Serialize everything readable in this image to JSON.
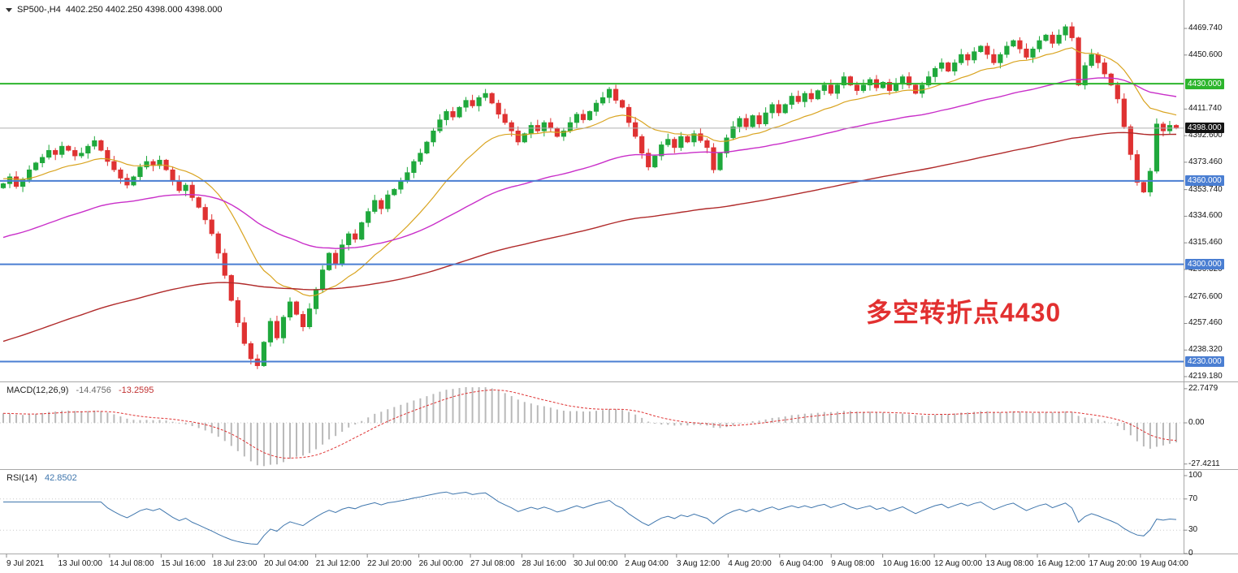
{
  "header": {
    "symbol_timeframe": "SP500-,H4",
    "ohlc": "4402.250 4402.250 4398.000 4398.000"
  },
  "annotation": {
    "text": "多空转折点4430"
  },
  "macd_panel": {
    "name": "MACD(12,26,9)",
    "value_main": "-14.4756",
    "value_signal": "-13.2595"
  },
  "rsi_panel": {
    "name": "RSI(14)",
    "value": "42.8502"
  },
  "colors": {
    "bull": "#1fa83c",
    "bear": "#df3232",
    "ma_fast": "#d9a420",
    "ma_mid": "#c92fc9",
    "ma_slow": "#b02a2a",
    "level_green": "#2db52d",
    "level_blue": "#4a7ed2",
    "current_line": "#b0b0b0",
    "current_badge_bg": "#141414",
    "macd_hist": "#b9b9b9",
    "macd_signal": "#df3232",
    "rsi_line": "#3f76ad",
    "axis_text": "#141414",
    "separator": "#a8a8a8",
    "grid": "#cccccc",
    "annotation": "#e23030"
  },
  "chart_data": {
    "type": "candlestick",
    "symbol": "SP500-",
    "timeframe": "H4",
    "title": "SP500-,H4 4402.250 4402.250 4398.000 4398.000",
    "ylim": [
      4215.7,
      4490.2
    ],
    "closes": [
      4358,
      4363,
      4356,
      4361,
      4368,
      4373,
      4377,
      4382,
      4379,
      4385,
      4382,
      4378,
      4380,
      4385,
      4389,
      4382,
      4374,
      4368,
      4362,
      4357,
      4363,
      4370,
      4374,
      4371,
      4375,
      4368,
      4360,
      4353,
      4357,
      4348,
      4341,
      4332,
      4322,
      4308,
      4292,
      4274,
      4258,
      4243,
      4232,
      4227,
      4244,
      4259,
      4247,
      4262,
      4273,
      4264,
      4255,
      4268,
      4282,
      4296,
      4308,
      4300,
      4314,
      4322,
      4318,
      4330,
      4338,
      4346,
      4340,
      4350,
      4354,
      4360,
      4366,
      4374,
      4380,
      4388,
      4396,
      4404,
      4410,
      4406,
      4413,
      4418,
      4414,
      4420,
      4423,
      4416,
      4408,
      4402,
      4396,
      4388,
      4394,
      4400,
      4396,
      4402,
      4398,
      4392,
      4396,
      4402,
      4408,
      4404,
      4410,
      4416,
      4420,
      4426,
      4418,
      4413,
      4402,
      4392,
      4380,
      4370,
      4378,
      4386,
      4390,
      4384,
      4392,
      4388,
      4394,
      4389,
      4384,
      4368,
      4380,
      4391,
      4399,
      4405,
      4399,
      4407,
      4401,
      4409,
      4415,
      4409,
      4415,
      4421,
      4417,
      4423,
      4419,
      4425,
      4429,
      4423,
      4429,
      4435,
      4429,
      4425,
      4429,
      4433,
      4427,
      4431,
      4425,
      4430,
      4435,
      4429,
      4423,
      4429,
      4435,
      4441,
      4445,
      4439,
      4445,
      4451,
      4447,
      4453,
      4457,
      4451,
      4445,
      4451,
      4457,
      4461,
      4455,
      4449,
      4455,
      4461,
      4465,
      4459,
      4465,
      4471,
      4463,
      4429,
      4443,
      4451,
      4445,
      4437,
      4429,
      4419,
      4399,
      4379,
      4359,
      4352,
      4367,
      4401,
      4396,
      4400,
      4398
    ],
    "moving_averages": [
      {
        "name": "fast-orange",
        "period": 18,
        "seed": 4362,
        "color_key": "ma_fast",
        "width": 1.2
      },
      {
        "name": "mid-magenta",
        "period": 60,
        "seed": 4318,
        "color_key": "ma_mid",
        "width": 1.4
      },
      {
        "name": "slow-darkred",
        "period": 150,
        "seed": 4243,
        "color_key": "ma_slow",
        "width": 1.4
      }
    ],
    "y_ticks": [
      {
        "label": "4469.740",
        "v": 4469.74
      },
      {
        "label": "4450.600",
        "v": 4450.6
      },
      {
        "label": "4411.740",
        "v": 4411.74
      },
      {
        "label": "4392.600",
        "v": 4392.6
      },
      {
        "label": "4373.460",
        "v": 4373.46
      },
      {
        "label": "4353.740",
        "v": 4353.74
      },
      {
        "label": "4334.600",
        "v": 4334.6
      },
      {
        "label": "4315.460",
        "v": 4315.46
      },
      {
        "label": "4296.320",
        "v": 4296.32
      },
      {
        "label": "4276.600",
        "v": 4276.6
      },
      {
        "label": "4257.460",
        "v": 4257.46
      },
      {
        "label": "4238.320",
        "v": 4238.32
      },
      {
        "label": "4219.180",
        "v": 4219.18
      }
    ],
    "levels": [
      {
        "label": "4430.000",
        "v": 4430,
        "color": "green"
      },
      {
        "label": "4360.000",
        "v": 4360,
        "color": "blue"
      },
      {
        "label": "4300.000",
        "v": 4300,
        "color": "blue"
      },
      {
        "label": "4230.000",
        "v": 4230,
        "color": "blue"
      }
    ],
    "current_price": {
      "label": "4398.000",
      "v": 4398
    },
    "macd": {
      "params": [
        12,
        26,
        9
      ],
      "main": -14.4756,
      "signal": -13.2595,
      "ticks": [
        {
          "label": "22.7479",
          "v": 22.7479
        },
        {
          "label": "0.00",
          "v": 0
        },
        {
          "label": "-27.4211",
          "v": -27.4211
        }
      ]
    },
    "rsi": {
      "period": 14,
      "value": 42.8502,
      "ticks": [
        {
          "label": "100",
          "v": 100
        },
        {
          "label": "70",
          "v": 70
        },
        {
          "label": "30",
          "v": 30
        },
        {
          "label": "0",
          "v": 0
        }
      ]
    },
    "x_labels": [
      "9 Jul 2021",
      "13 Jul 00:00",
      "14 Jul 08:00",
      "15 Jul 16:00",
      "18 Jul 23:00",
      "20 Jul 04:00",
      "21 Jul 12:00",
      "22 Jul 20:00",
      "26 Jul 00:00",
      "27 Jul 08:00",
      "28 Jul 16:00",
      "30 Jul 00:00",
      "2 Aug 04:00",
      "3 Aug 12:00",
      "4 Aug 20:00",
      "6 Aug 04:00",
      "9 Aug 08:00",
      "10 Aug 16:00",
      "12 Aug 00:00",
      "13 Aug 08:00",
      "16 Aug 12:00",
      "17 Aug 20:00",
      "19 Aug 04:00"
    ]
  }
}
